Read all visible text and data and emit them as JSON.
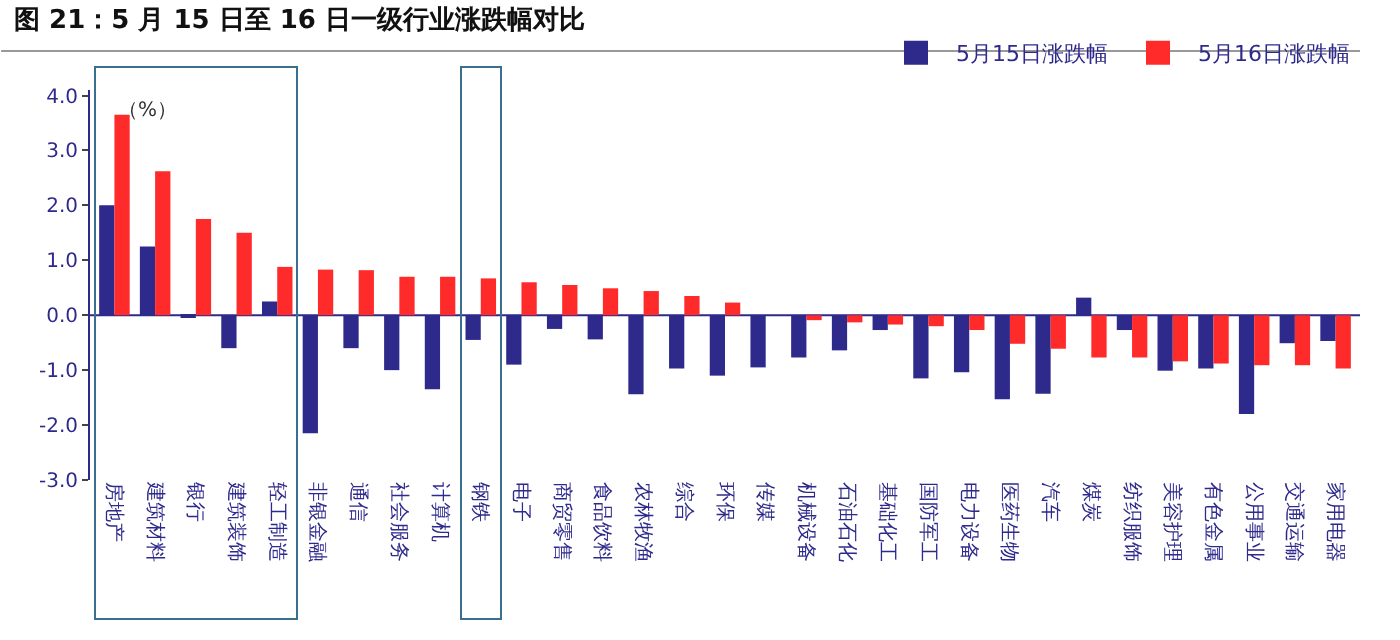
{
  "chart_data": {
    "type": "bar",
    "title": "图 21：5 月 15 日至 16 日一级行业涨跌幅对比",
    "annotations": [
      "（%）"
    ],
    "categories": [
      "房地产",
      "建筑材料",
      "银行",
      "建筑装饰",
      "轻工制造",
      "非银金融",
      "通信",
      "社会服务",
      "计算机",
      "钢铁",
      "电子",
      "商贸零售",
      "食品饮料",
      "农林牧渔",
      "综合",
      "环保",
      "传媒",
      "机械设备",
      "石油石化",
      "基础化工",
      "国防军工",
      "电力设备",
      "医药生物",
      "汽车",
      "煤炭",
      "纺织服饰",
      "美容护理",
      "有色金属",
      "公用事业",
      "交通运输",
      "家用电器"
    ],
    "series": [
      {
        "name": "5月15日涨跌幅",
        "color": "#2e2a8c",
        "values": [
          2.0,
          1.25,
          -0.05,
          -0.6,
          0.25,
          -2.15,
          -0.6,
          -1.0,
          -1.35,
          -0.45,
          -0.9,
          -0.25,
          -0.44,
          -1.44,
          -0.97,
          -1.1,
          -0.95,
          -0.77,
          -0.64,
          -0.27,
          -1.15,
          -1.04,
          -1.53,
          -1.43,
          0.32,
          -0.27,
          -1.01,
          -0.97,
          -1.8,
          -0.51,
          -0.47
        ]
      },
      {
        "name": "5月16日涨跌幅",
        "color": "#ff2a2a",
        "values": [
          3.65,
          2.62,
          1.75,
          1.5,
          0.88,
          0.83,
          0.82,
          0.7,
          0.7,
          0.67,
          0.6,
          0.55,
          0.49,
          0.44,
          0.35,
          0.23,
          0.0,
          -0.09,
          -0.13,
          -0.17,
          -0.2,
          -0.27,
          -0.52,
          -0.61,
          -0.77,
          -0.77,
          -0.84,
          -0.88,
          -0.91,
          -0.91,
          -0.97
        ]
      }
    ],
    "ylim": [
      -3,
      4.1
    ],
    "yticks": [
      {
        "value": -3,
        "label": "-3.0"
      },
      {
        "value": -2,
        "label": "-2.0"
      },
      {
        "value": -1,
        "label": "-1.0"
      },
      {
        "value": 0,
        "label": "0.0"
      },
      {
        "value": 1,
        "label": "1.0"
      },
      {
        "value": 2,
        "label": "2.0"
      },
      {
        "value": 3,
        "label": "3.0"
      },
      {
        "value": 4,
        "label": "4.0"
      }
    ],
    "ref_lines": [
      {
        "axis": "y",
        "value": 0,
        "color": "#2e2a8c"
      }
    ],
    "legend": "top right",
    "grid": false
  }
}
